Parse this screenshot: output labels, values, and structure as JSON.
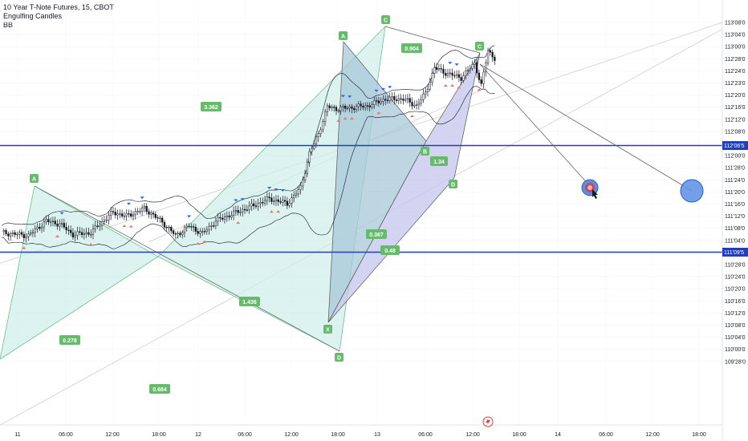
{
  "header": {
    "symbol_line": "10 Year T-Note Futures, 15, CBOT",
    "indicator_1": "Engulfing Candles",
    "indicator_2": "BB"
  },
  "colors": {
    "up": "#131722",
    "down": "#131722",
    "hline": "#1e3fbf",
    "pattern_fill": "#b9ebe2",
    "pattern_fill_2": "#b7b9e6",
    "pattern_stroke": "#4caf50",
    "label_green": "#66bb6a",
    "tri_up_blue": "#2962ff",
    "tri_down_red": "#e57373",
    "target_red": "#e53935",
    "target_blue": "#5b8ee6"
  },
  "chart_data": {
    "type": "candlestick",
    "x_ticks": [
      "11",
      "06:00",
      "12:00",
      "18:00",
      "12",
      "06:00",
      "12:00",
      "18:00",
      "13",
      "06:00",
      "12:00",
      "18:00",
      "14",
      "06:00",
      "12:00",
      "18:00"
    ],
    "y_ticks": [
      "113'08'0",
      "113'04'0",
      "113'00'0",
      "112'28'0",
      "112'24'0",
      "112'23'0",
      "112'20'0",
      "112'16'0",
      "112'12'0",
      "112'08'0",
      "112'04'0",
      "112'00'0",
      "111'28'0",
      "111'24'0",
      "111'20'0",
      "111'16'0",
      "111'12'0",
      "111'08'0",
      "111'04'0",
      "111'00'0",
      "110'28'0",
      "110'24'0",
      "110'20'0",
      "110'16'0",
      "110'12'0",
      "110'08'0",
      "110'04'0",
      "110'00'0",
      "109'28'0"
    ],
    "hlines": [
      {
        "label": "112'06'5"
      },
      {
        "label": "111'09'5"
      }
    ],
    "price_path": [
      {
        "x": 0,
        "y": 111.08
      },
      {
        "x": 12,
        "y": 111.05
      },
      {
        "x": 20,
        "y": 111.2
      },
      {
        "x": 26,
        "y": 111.17
      },
      {
        "x": 32,
        "y": 111.06
      },
      {
        "x": 40,
        "y": 111.08
      },
      {
        "x": 44,
        "y": 111.17
      },
      {
        "x": 50,
        "y": 111.29
      },
      {
        "x": 56,
        "y": 111.25
      },
      {
        "x": 64,
        "y": 111.33
      },
      {
        "x": 72,
        "y": 111.19
      },
      {
        "x": 78,
        "y": 111.05
      },
      {
        "x": 84,
        "y": 111.15
      },
      {
        "x": 90,
        "y": 111.07
      },
      {
        "x": 96,
        "y": 111.2
      },
      {
        "x": 104,
        "y": 111.28
      },
      {
        "x": 112,
        "y": 111.35
      },
      {
        "x": 120,
        "y": 111.43
      },
      {
        "x": 128,
        "y": 111.38
      },
      {
        "x": 134,
        "y": 111.54
      },
      {
        "x": 138,
        "y": 111.9
      },
      {
        "x": 142,
        "y": 112.1
      },
      {
        "x": 146,
        "y": 112.38
      },
      {
        "x": 150,
        "y": 112.36
      },
      {
        "x": 156,
        "y": 112.37
      },
      {
        "x": 164,
        "y": 112.39
      },
      {
        "x": 172,
        "y": 112.46
      },
      {
        "x": 180,
        "y": 112.46
      },
      {
        "x": 186,
        "y": 112.39
      },
      {
        "x": 190,
        "y": 112.52
      },
      {
        "x": 194,
        "y": 112.78
      },
      {
        "x": 200,
        "y": 112.72
      },
      {
        "x": 206,
        "y": 112.68
      },
      {
        "x": 212,
        "y": 112.83
      },
      {
        "x": 215,
        "y": 112.6
      },
      {
        "x": 218,
        "y": 112.96
      },
      {
        "x": 221,
        "y": 112.88
      }
    ],
    "patterns": [
      {
        "points": [
          {
            "label": "A"
          },
          {
            "label": "C"
          },
          {
            "label": "D"
          }
        ],
        "ratios": [
          "0.278",
          "1.436",
          "0.684"
        ]
      },
      {
        "points": [
          {
            "label": "X"
          },
          {
            "label": "A"
          },
          {
            "label": "B"
          },
          {
            "label": "C"
          },
          {
            "label": "D"
          }
        ],
        "ratios": [
          "3.362",
          "0.367",
          "0.904",
          "0.48",
          "1.34"
        ]
      }
    ]
  }
}
